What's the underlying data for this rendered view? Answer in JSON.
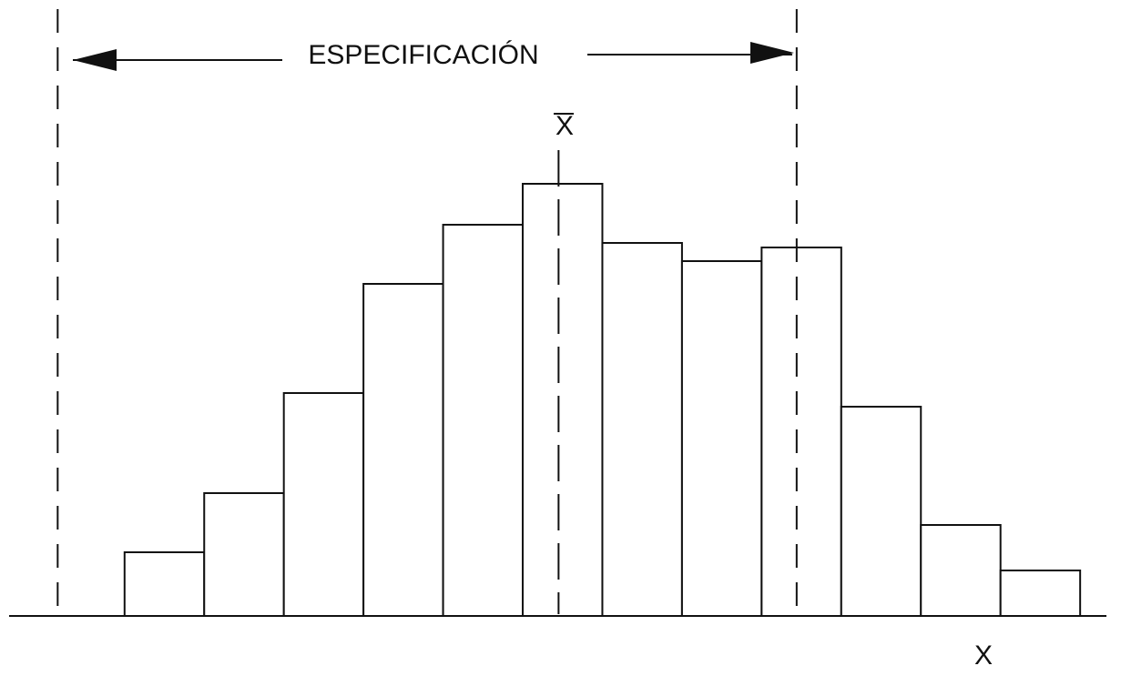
{
  "chart_data": {
    "type": "histogram",
    "title": "ESPECIFICACIÓN",
    "mean_label": "X",
    "x_label": "X",
    "bins": [
      1,
      2,
      3,
      4,
      5,
      6,
      7,
      8,
      9,
      10,
      11,
      12,
      13
    ],
    "counts": [
      13,
      26,
      48,
      72,
      85,
      94,
      81,
      77,
      80,
      45,
      19,
      9
    ],
    "xlim": [
      -0.45,
      13.33
    ],
    "ylim": [
      0,
      100
    ],
    "lower_spec": 0.16,
    "upper_spec": 9.44,
    "mean": 6.45,
    "color": "#ffffff"
  }
}
